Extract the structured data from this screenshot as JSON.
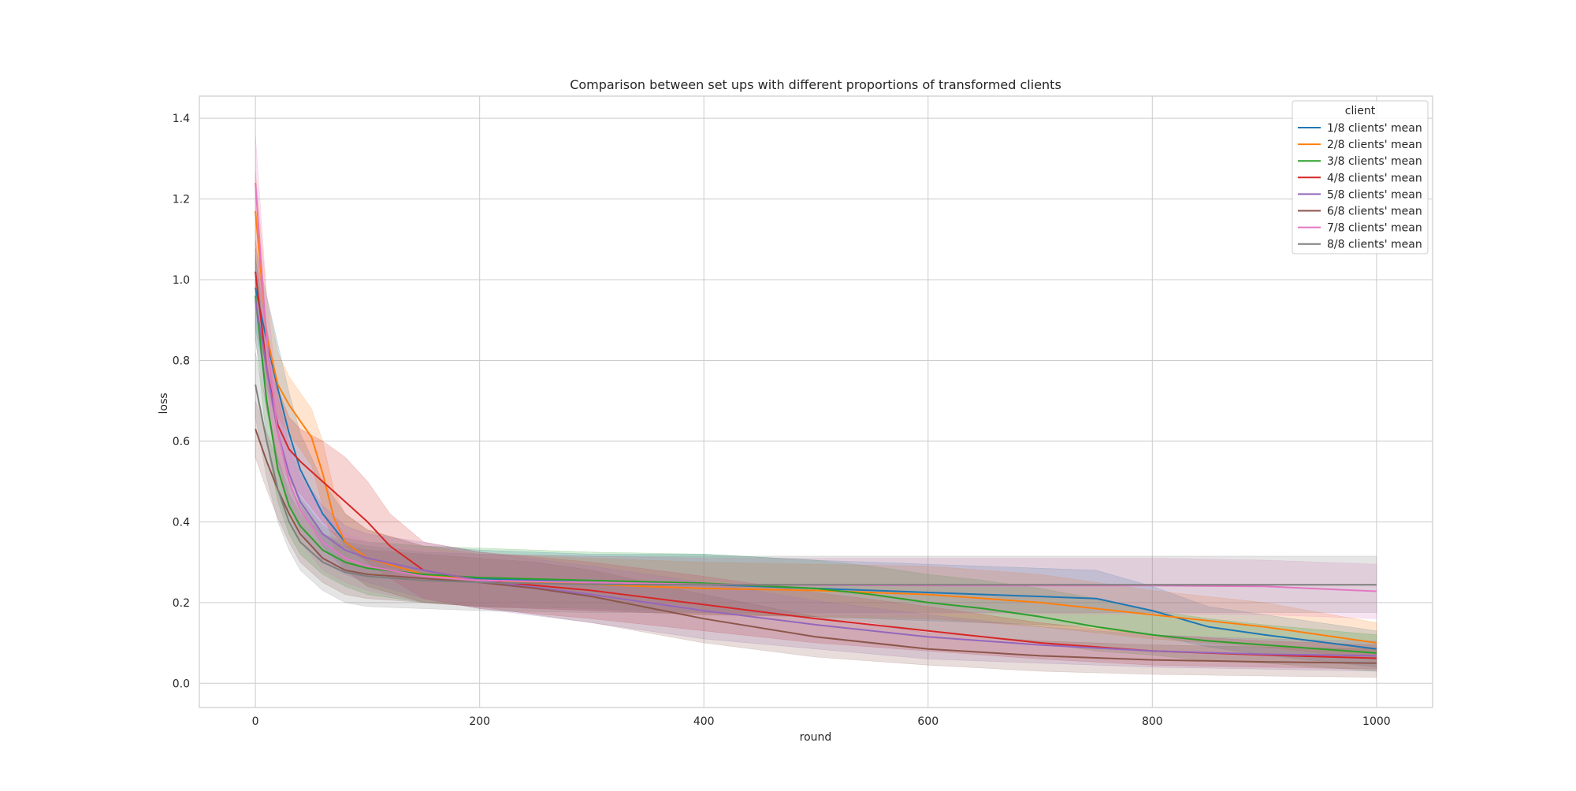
{
  "chart_data": {
    "type": "line",
    "title": "Comparison between set ups with different proportions of transformed clients",
    "xlabel": "round",
    "ylabel": "loss",
    "xlim": [
      -50,
      1050
    ],
    "ylim": [
      -0.06,
      1.455
    ],
    "xticks": [
      0,
      200,
      400,
      600,
      800,
      1000
    ],
    "yticks": [
      0.0,
      0.2,
      0.4,
      0.6,
      0.8,
      1.0,
      1.2,
      1.4
    ],
    "grid": true,
    "legend": {
      "title": "client",
      "placement": "top-right"
    },
    "series": [
      {
        "name": "1/8 clients' mean",
        "color": "#1f77b4",
        "x": [
          0,
          10,
          20,
          30,
          40,
          60,
          80,
          100,
          150,
          200,
          300,
          400,
          500,
          600,
          650,
          700,
          750,
          800,
          850,
          900,
          1000
        ],
        "y": [
          0.98,
          0.85,
          0.73,
          0.62,
          0.53,
          0.42,
          0.35,
          0.31,
          0.27,
          0.26,
          0.25,
          0.245,
          0.235,
          0.225,
          0.22,
          0.215,
          0.21,
          0.18,
          0.14,
          0.12,
          0.085
        ],
        "band_low": [
          0.88,
          0.74,
          0.63,
          0.52,
          0.44,
          0.34,
          0.28,
          0.24,
          0.2,
          0.19,
          0.18,
          0.17,
          0.165,
          0.155,
          0.15,
          0.145,
          0.14,
          0.12,
          0.09,
          0.07,
          0.04
        ],
        "band_high": [
          1.08,
          0.96,
          0.84,
          0.72,
          0.62,
          0.5,
          0.42,
          0.38,
          0.34,
          0.33,
          0.32,
          0.32,
          0.305,
          0.295,
          0.29,
          0.285,
          0.28,
          0.24,
          0.19,
          0.17,
          0.13
        ]
      },
      {
        "name": "2/8 clients' mean",
        "color": "#ff7f0e",
        "x": [
          0,
          10,
          20,
          30,
          40,
          50,
          60,
          70,
          80,
          100,
          150,
          200,
          300,
          400,
          500,
          600,
          700,
          800,
          900,
          1000
        ],
        "y": [
          1.17,
          0.86,
          0.74,
          0.69,
          0.65,
          0.61,
          0.52,
          0.41,
          0.35,
          0.31,
          0.27,
          0.255,
          0.245,
          0.235,
          0.23,
          0.22,
          0.2,
          0.17,
          0.14,
          0.1
        ],
        "band_low": [
          1.07,
          0.76,
          0.66,
          0.62,
          0.58,
          0.54,
          0.44,
          0.34,
          0.28,
          0.24,
          0.2,
          0.19,
          0.18,
          0.17,
          0.165,
          0.16,
          0.14,
          0.11,
          0.09,
          0.06
        ],
        "band_high": [
          1.27,
          0.96,
          0.82,
          0.76,
          0.72,
          0.68,
          0.6,
          0.48,
          0.42,
          0.38,
          0.34,
          0.32,
          0.31,
          0.3,
          0.295,
          0.29,
          0.27,
          0.23,
          0.2,
          0.15
        ]
      },
      {
        "name": "3/8 clients' mean",
        "color": "#2ca02c",
        "x": [
          0,
          10,
          20,
          30,
          40,
          60,
          80,
          100,
          150,
          200,
          300,
          400,
          500,
          550,
          600,
          650,
          700,
          750,
          800,
          850,
          900,
          1000
        ],
        "y": [
          0.96,
          0.7,
          0.53,
          0.44,
          0.39,
          0.33,
          0.3,
          0.285,
          0.27,
          0.262,
          0.255,
          0.248,
          0.235,
          0.22,
          0.2,
          0.185,
          0.165,
          0.14,
          0.12,
          0.105,
          0.095,
          0.075
        ],
        "band_low": [
          0.86,
          0.6,
          0.45,
          0.37,
          0.32,
          0.27,
          0.24,
          0.22,
          0.2,
          0.19,
          0.185,
          0.175,
          0.165,
          0.15,
          0.13,
          0.115,
          0.1,
          0.08,
          0.07,
          0.055,
          0.05,
          0.03
        ],
        "band_high": [
          1.06,
          0.8,
          0.61,
          0.51,
          0.46,
          0.39,
          0.36,
          0.35,
          0.34,
          0.335,
          0.325,
          0.32,
          0.305,
          0.29,
          0.27,
          0.255,
          0.235,
          0.21,
          0.18,
          0.16,
          0.145,
          0.12
        ]
      },
      {
        "name": "4/8 clients' mean",
        "color": "#d62728",
        "x": [
          0,
          10,
          20,
          30,
          40,
          60,
          80,
          100,
          120,
          150,
          200,
          300,
          400,
          500,
          600,
          700,
          800,
          900,
          1000
        ],
        "y": [
          1.02,
          0.78,
          0.64,
          0.58,
          0.55,
          0.5,
          0.45,
          0.4,
          0.34,
          0.28,
          0.255,
          0.23,
          0.195,
          0.16,
          0.13,
          0.1,
          0.08,
          0.07,
          0.062
        ],
        "band_low": [
          0.94,
          0.68,
          0.55,
          0.5,
          0.47,
          0.4,
          0.34,
          0.3,
          0.26,
          0.21,
          0.185,
          0.16,
          0.13,
          0.1,
          0.08,
          0.06,
          0.045,
          0.04,
          0.035
        ],
        "band_high": [
          1.1,
          0.88,
          0.73,
          0.66,
          0.63,
          0.6,
          0.56,
          0.5,
          0.42,
          0.35,
          0.325,
          0.3,
          0.265,
          0.225,
          0.19,
          0.15,
          0.12,
          0.105,
          0.095
        ]
      },
      {
        "name": "5/8 clients' mean",
        "color": "#9467bd",
        "x": [
          0,
          10,
          20,
          30,
          40,
          60,
          80,
          100,
          150,
          200,
          300,
          400,
          500,
          600,
          700,
          800,
          900,
          1000
        ],
        "y": [
          0.95,
          0.78,
          0.62,
          0.52,
          0.45,
          0.37,
          0.33,
          0.31,
          0.28,
          0.255,
          0.22,
          0.18,
          0.145,
          0.115,
          0.095,
          0.08,
          0.072,
          0.068
        ],
        "band_low": [
          0.85,
          0.68,
          0.53,
          0.44,
          0.38,
          0.3,
          0.27,
          0.25,
          0.21,
          0.185,
          0.15,
          0.11,
          0.085,
          0.06,
          0.05,
          0.04,
          0.035,
          0.03
        ],
        "band_high": [
          1.05,
          0.88,
          0.71,
          0.6,
          0.52,
          0.44,
          0.39,
          0.37,
          0.35,
          0.325,
          0.29,
          0.25,
          0.205,
          0.17,
          0.14,
          0.12,
          0.11,
          0.105
        ]
      },
      {
        "name": "6/8 clients' mean",
        "color": "#8c564b",
        "x": [
          0,
          10,
          20,
          30,
          40,
          60,
          80,
          100,
          150,
          200,
          250,
          300,
          400,
          500,
          600,
          700,
          800,
          900,
          1000
        ],
        "y": [
          0.63,
          0.55,
          0.48,
          0.42,
          0.37,
          0.31,
          0.28,
          0.27,
          0.26,
          0.25,
          0.235,
          0.215,
          0.16,
          0.115,
          0.085,
          0.068,
          0.058,
          0.053,
          0.05
        ],
        "band_low": [
          0.56,
          0.48,
          0.41,
          0.35,
          0.3,
          0.25,
          0.22,
          0.21,
          0.2,
          0.19,
          0.17,
          0.15,
          0.1,
          0.065,
          0.045,
          0.03,
          0.022,
          0.018,
          0.015
        ],
        "band_high": [
          0.7,
          0.62,
          0.55,
          0.49,
          0.44,
          0.37,
          0.34,
          0.33,
          0.32,
          0.31,
          0.3,
          0.28,
          0.22,
          0.165,
          0.125,
          0.105,
          0.095,
          0.09,
          0.085
        ]
      },
      {
        "name": "7/8 clients' mean",
        "color": "#e377c2",
        "x": [
          0,
          10,
          20,
          30,
          40,
          60,
          80,
          100,
          150,
          200,
          300,
          400,
          500,
          600,
          700,
          800,
          900,
          1000
        ],
        "y": [
          1.24,
          0.85,
          0.62,
          0.5,
          0.43,
          0.35,
          0.31,
          0.29,
          0.265,
          0.255,
          0.25,
          0.245,
          0.243,
          0.242,
          0.242,
          0.242,
          0.24,
          0.228
        ],
        "band_low": [
          1.12,
          0.74,
          0.53,
          0.42,
          0.35,
          0.28,
          0.25,
          0.23,
          0.2,
          0.19,
          0.18,
          0.175,
          0.172,
          0.172,
          0.172,
          0.172,
          0.17,
          0.16
        ],
        "band_high": [
          1.36,
          0.96,
          0.71,
          0.58,
          0.51,
          0.42,
          0.37,
          0.35,
          0.33,
          0.32,
          0.315,
          0.31,
          0.31,
          0.31,
          0.31,
          0.31,
          0.305,
          0.295
        ]
      },
      {
        "name": "8/8 clients' mean",
        "color": "#7f7f7f",
        "x": [
          0,
          10,
          20,
          30,
          40,
          60,
          80,
          100,
          150,
          200,
          300,
          400,
          500,
          600,
          700,
          800,
          900,
          1000
        ],
        "y": [
          0.74,
          0.6,
          0.48,
          0.4,
          0.35,
          0.3,
          0.275,
          0.265,
          0.255,
          0.25,
          0.245,
          0.244,
          0.244,
          0.244,
          0.244,
          0.244,
          0.244,
          0.244
        ],
        "band_low": [
          0.66,
          0.51,
          0.4,
          0.33,
          0.28,
          0.23,
          0.2,
          0.19,
          0.185,
          0.18,
          0.175,
          0.175,
          0.175,
          0.175,
          0.175,
          0.175,
          0.175,
          0.175
        ],
        "band_high": [
          0.82,
          0.69,
          0.56,
          0.47,
          0.42,
          0.37,
          0.35,
          0.34,
          0.325,
          0.32,
          0.315,
          0.315,
          0.315,
          0.315,
          0.315,
          0.315,
          0.315,
          0.315
        ]
      }
    ]
  }
}
